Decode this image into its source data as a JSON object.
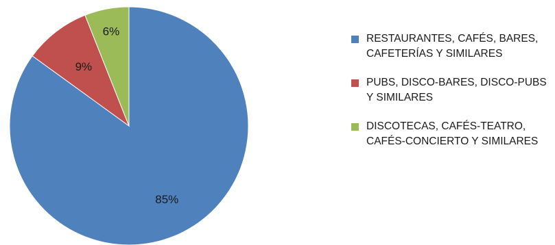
{
  "chart_data": {
    "type": "pie",
    "start_angle_deg": 0,
    "direction": "clockwise",
    "slices": [
      {
        "name": "RESTAURANTES, CAFÉS, BARES, CAFETERÍAS Y SIMILARES",
        "value": 85,
        "label": "85%",
        "color": "#4f81bd"
      },
      {
        "name": "PUBS, DISCO-BARES, DISCO-PUBS Y SIMILARES",
        "value": 9,
        "label": "9%",
        "color": "#c0504d"
      },
      {
        "name": "DISCOTECAS, CAFÉS-TEATRO, CAFÉS-CONCIERTO Y SIMILARES",
        "value": 6,
        "label": "6%",
        "color": "#9bbb59"
      }
    ],
    "legend_position": "right",
    "title": ""
  },
  "legend": {
    "items": [
      {
        "label": "RESTAURANTES, CAFÉS, BARES, CAFETERÍAS Y SIMILARES",
        "color": "#4f81bd"
      },
      {
        "label": "PUBS, DISCO-BARES, DISCO-PUBS Y SIMILARES",
        "color": "#c0504d"
      },
      {
        "label": "DISCOTECAS, CAFÉS-TEATRO, CAFÉS-CONCIERTO Y SIMILARES",
        "color": "#9bbb59"
      }
    ]
  }
}
